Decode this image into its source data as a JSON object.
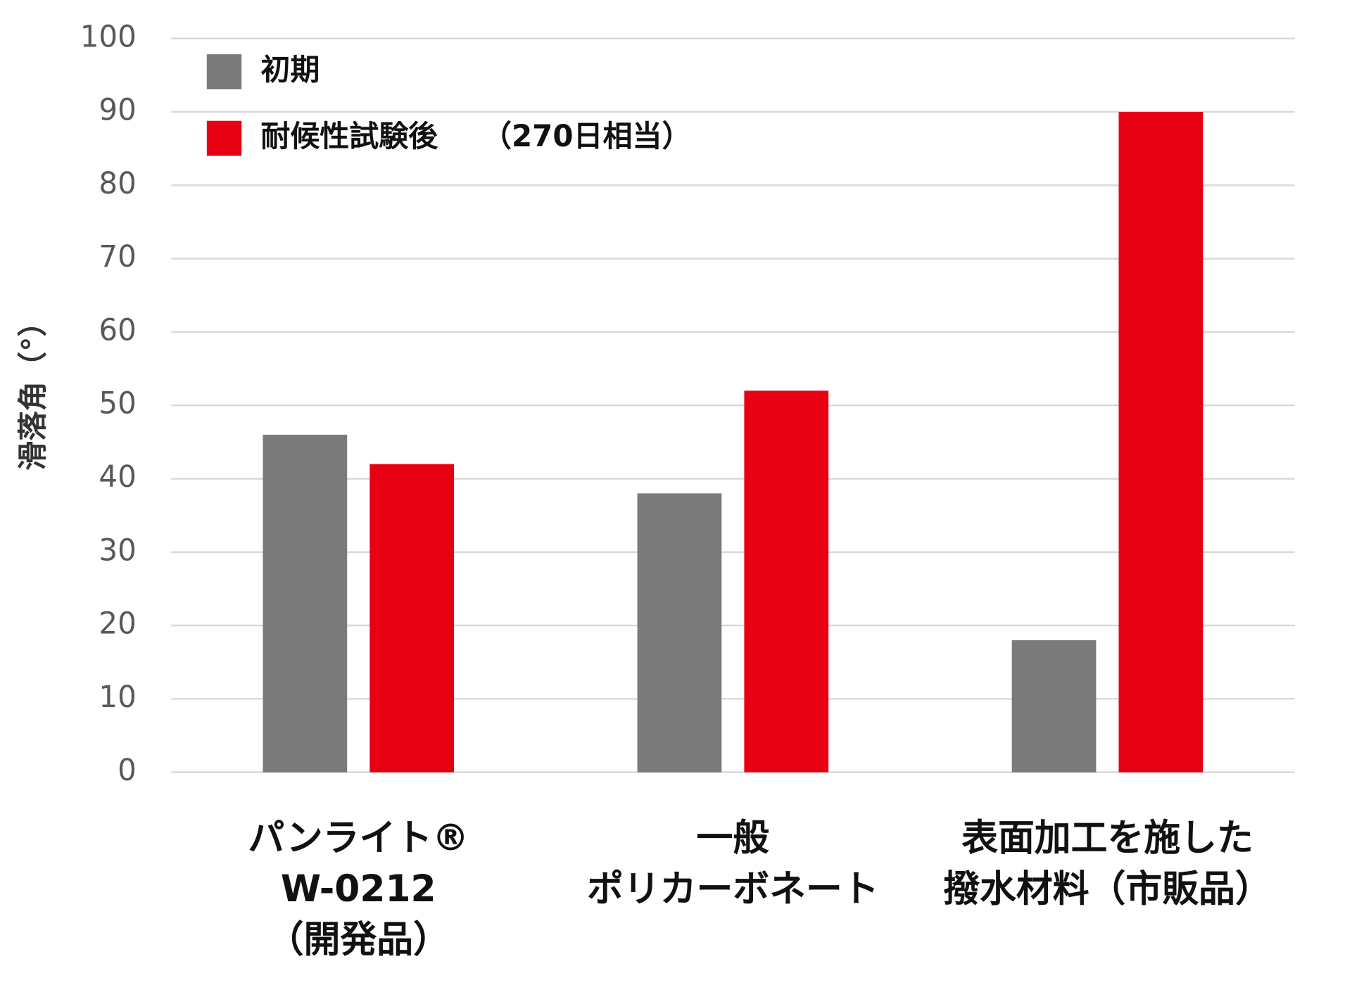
{
  "chart_data": {
    "type": "bar",
    "y_label": "滑落角（°）",
    "categories": [
      [
        "パンライト®",
        "W-0212",
        "（開発品）"
      ],
      [
        "一般",
        "ポリカーボネート"
      ],
      [
        "表面加工を施した",
        "撥水材料（市販品）"
      ]
    ],
    "series": [
      {
        "name": "初期",
        "color": "#7a7a7a",
        "values": [
          46,
          38,
          18
        ]
      },
      {
        "name": "耐候性試験後　　（270日相当）",
        "color": "#e60012",
        "values": [
          42,
          52,
          90
        ]
      }
    ],
    "ylim": [
      0,
      100
    ],
    "yticks": [
      0,
      10,
      20,
      30,
      40,
      50,
      60,
      70,
      80,
      90,
      100
    ],
    "grid": true,
    "legend": "top-left"
  }
}
